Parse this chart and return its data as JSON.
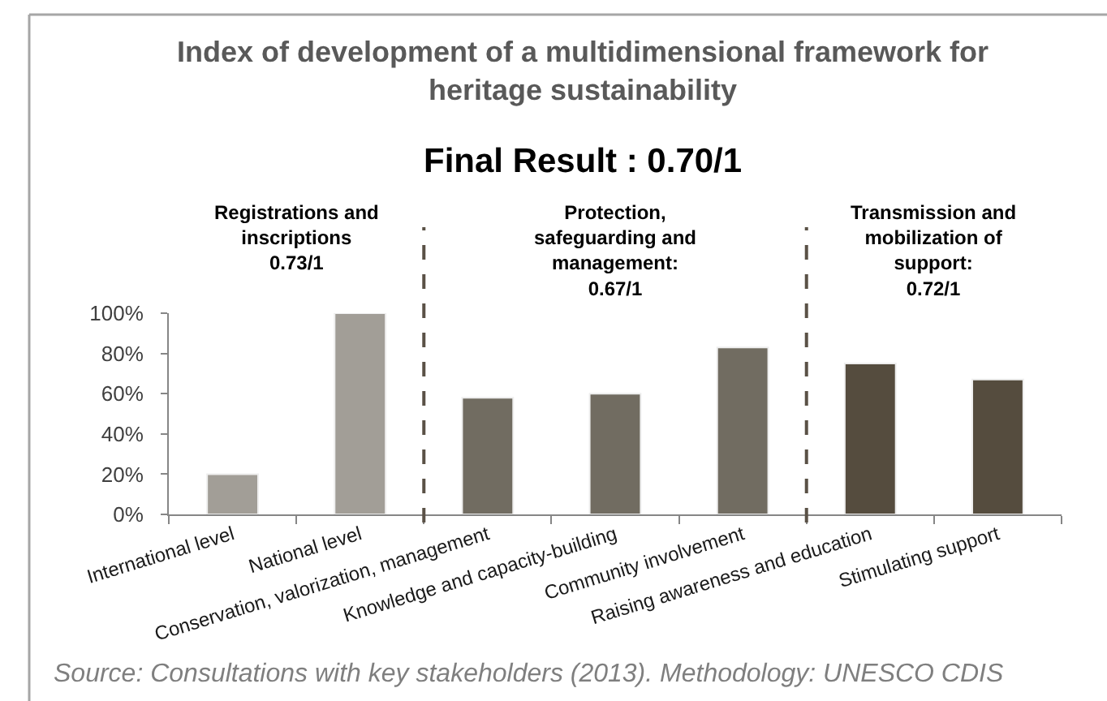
{
  "chart_data": {
    "type": "bar",
    "title": "Index of development of a multidimensional framework for\nheritage sustainability",
    "subtitle": "Final Result : 0.70/1",
    "categories": [
      "International level",
      "National level",
      "Conservation, valorization, management",
      "Knowledge and capacity-building",
      "Community involvement",
      "Raising awareness and education",
      "Stimulating support"
    ],
    "values": [
      20,
      100,
      58,
      60,
      83,
      75,
      67
    ],
    "colors": [
      "#a29e97",
      "#a29e97",
      "#716c61",
      "#716c61",
      "#716c61",
      "#554c3e",
      "#554c3e"
    ],
    "ylim": [
      0,
      100
    ],
    "yticks": [
      {
        "value": 0,
        "label": "0%"
      },
      {
        "value": 20,
        "label": "20%"
      },
      {
        "value": 40,
        "label": "40%"
      },
      {
        "value": 60,
        "label": "60%"
      },
      {
        "value": 80,
        "label": "80%"
      },
      {
        "value": 100,
        "label": "100%"
      }
    ],
    "grid": false,
    "annotations": [
      "Registrations and\ninscriptions\n0.73/1",
      "Protection,\nsafeguarding and\nmanagement:\n0.67/1",
      "Transmission and\nmobilization of\nsupport:\n0.72/1",
      "Source: Consultations with key stakeholders (2013). Methodology: UNESCO CDIS"
    ]
  }
}
